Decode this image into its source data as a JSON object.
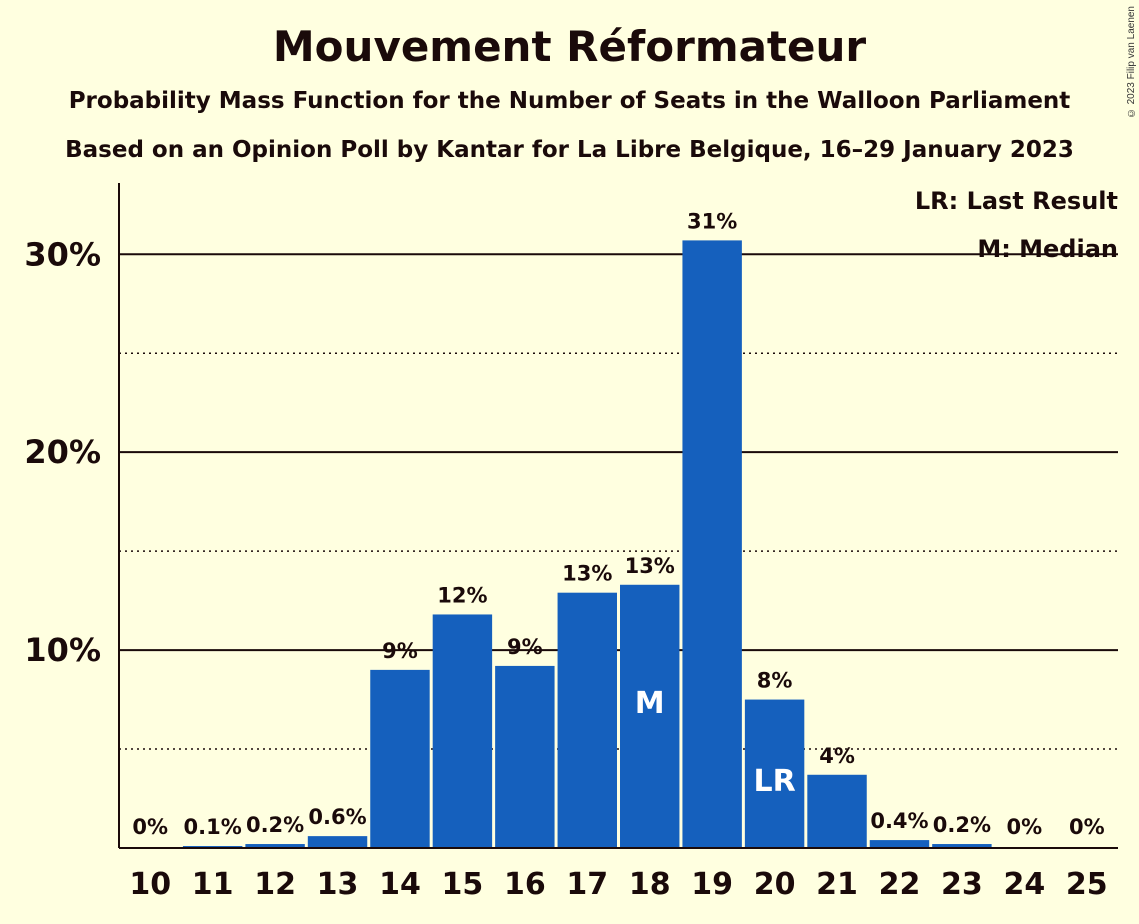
{
  "chart_data": {
    "type": "bar",
    "title": "Mouvement Réformateur",
    "subtitle": "Probability Mass Function for the Number of Seats in the Walloon Parliament",
    "subtitle2": "Based on an Opinion Poll by Kantar for La Libre Belgique, 16–29 January 2023",
    "copyright": "© 2023 Filip van Laenen",
    "categories": [
      "10",
      "11",
      "12",
      "13",
      "14",
      "15",
      "16",
      "17",
      "18",
      "19",
      "20",
      "21",
      "22",
      "23",
      "24",
      "25"
    ],
    "values": [
      0,
      0.1,
      0.2,
      0.6,
      9.0,
      11.8,
      9.2,
      12.9,
      13.3,
      30.7,
      7.5,
      3.7,
      0.4,
      0.2,
      0,
      0
    ],
    "value_labels": [
      "0%",
      "0.1%",
      "0.2%",
      "0.6%",
      "9%",
      "12%",
      "9%",
      "13%",
      "13%",
      "31%",
      "8%",
      "4%",
      "0.4%",
      "0.2%",
      "0%",
      "0%"
    ],
    "yticks": [
      10,
      20,
      30
    ],
    "ytick_labels": [
      "10%",
      "20%",
      "30%"
    ],
    "ylim": [
      0,
      33.6
    ],
    "minor_grid": [
      5,
      15,
      25
    ],
    "bar_color": "#1560bd",
    "median_index": 8,
    "median_marker": "M",
    "last_result_index": 10,
    "last_result_marker": "LR",
    "legend": {
      "position": "top-right",
      "items": [
        "LR: Last Result",
        "M: Median"
      ]
    },
    "xlabel": "",
    "ylabel": ""
  }
}
